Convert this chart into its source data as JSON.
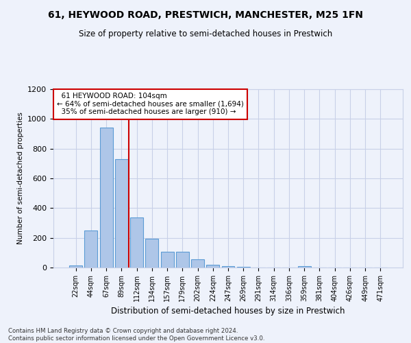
{
  "title": "61, HEYWOOD ROAD, PRESTWICH, MANCHESTER, M25 1FN",
  "subtitle": "Size of property relative to semi-detached houses in Prestwich",
  "xlabel": "Distribution of semi-detached houses by size in Prestwich",
  "ylabel": "Number of semi-detached properties",
  "bar_color": "#aec6e8",
  "bar_edge_color": "#5b9bd5",
  "categories": [
    "22sqm",
    "44sqm",
    "67sqm",
    "89sqm",
    "112sqm",
    "134sqm",
    "157sqm",
    "179sqm",
    "202sqm",
    "224sqm",
    "247sqm",
    "269sqm",
    "291sqm",
    "314sqm",
    "336sqm",
    "359sqm",
    "381sqm",
    "404sqm",
    "426sqm",
    "449sqm",
    "471sqm"
  ],
  "values": [
    15,
    248,
    940,
    730,
    335,
    193,
    105,
    105,
    55,
    20,
    10,
    5,
    0,
    0,
    0,
    10,
    0,
    0,
    0,
    0,
    0
  ],
  "ylim": [
    0,
    1200
  ],
  "yticks": [
    0,
    200,
    400,
    600,
    800,
    1000,
    1200
  ],
  "property_line_x": 3.5,
  "annotation_text": "  61 HEYWOOD ROAD: 104sqm\n← 64% of semi-detached houses are smaller (1,694)\n  35% of semi-detached houses are larger (910) →",
  "annotation_box_color": "#ffffff",
  "annotation_box_edge_color": "#cc0000",
  "property_line_color": "#cc0000",
  "footer_text": "Contains HM Land Registry data © Crown copyright and database right 2024.\nContains public sector information licensed under the Open Government Licence v3.0.",
  "background_color": "#eef2fb",
  "grid_color": "#c8d0e8"
}
